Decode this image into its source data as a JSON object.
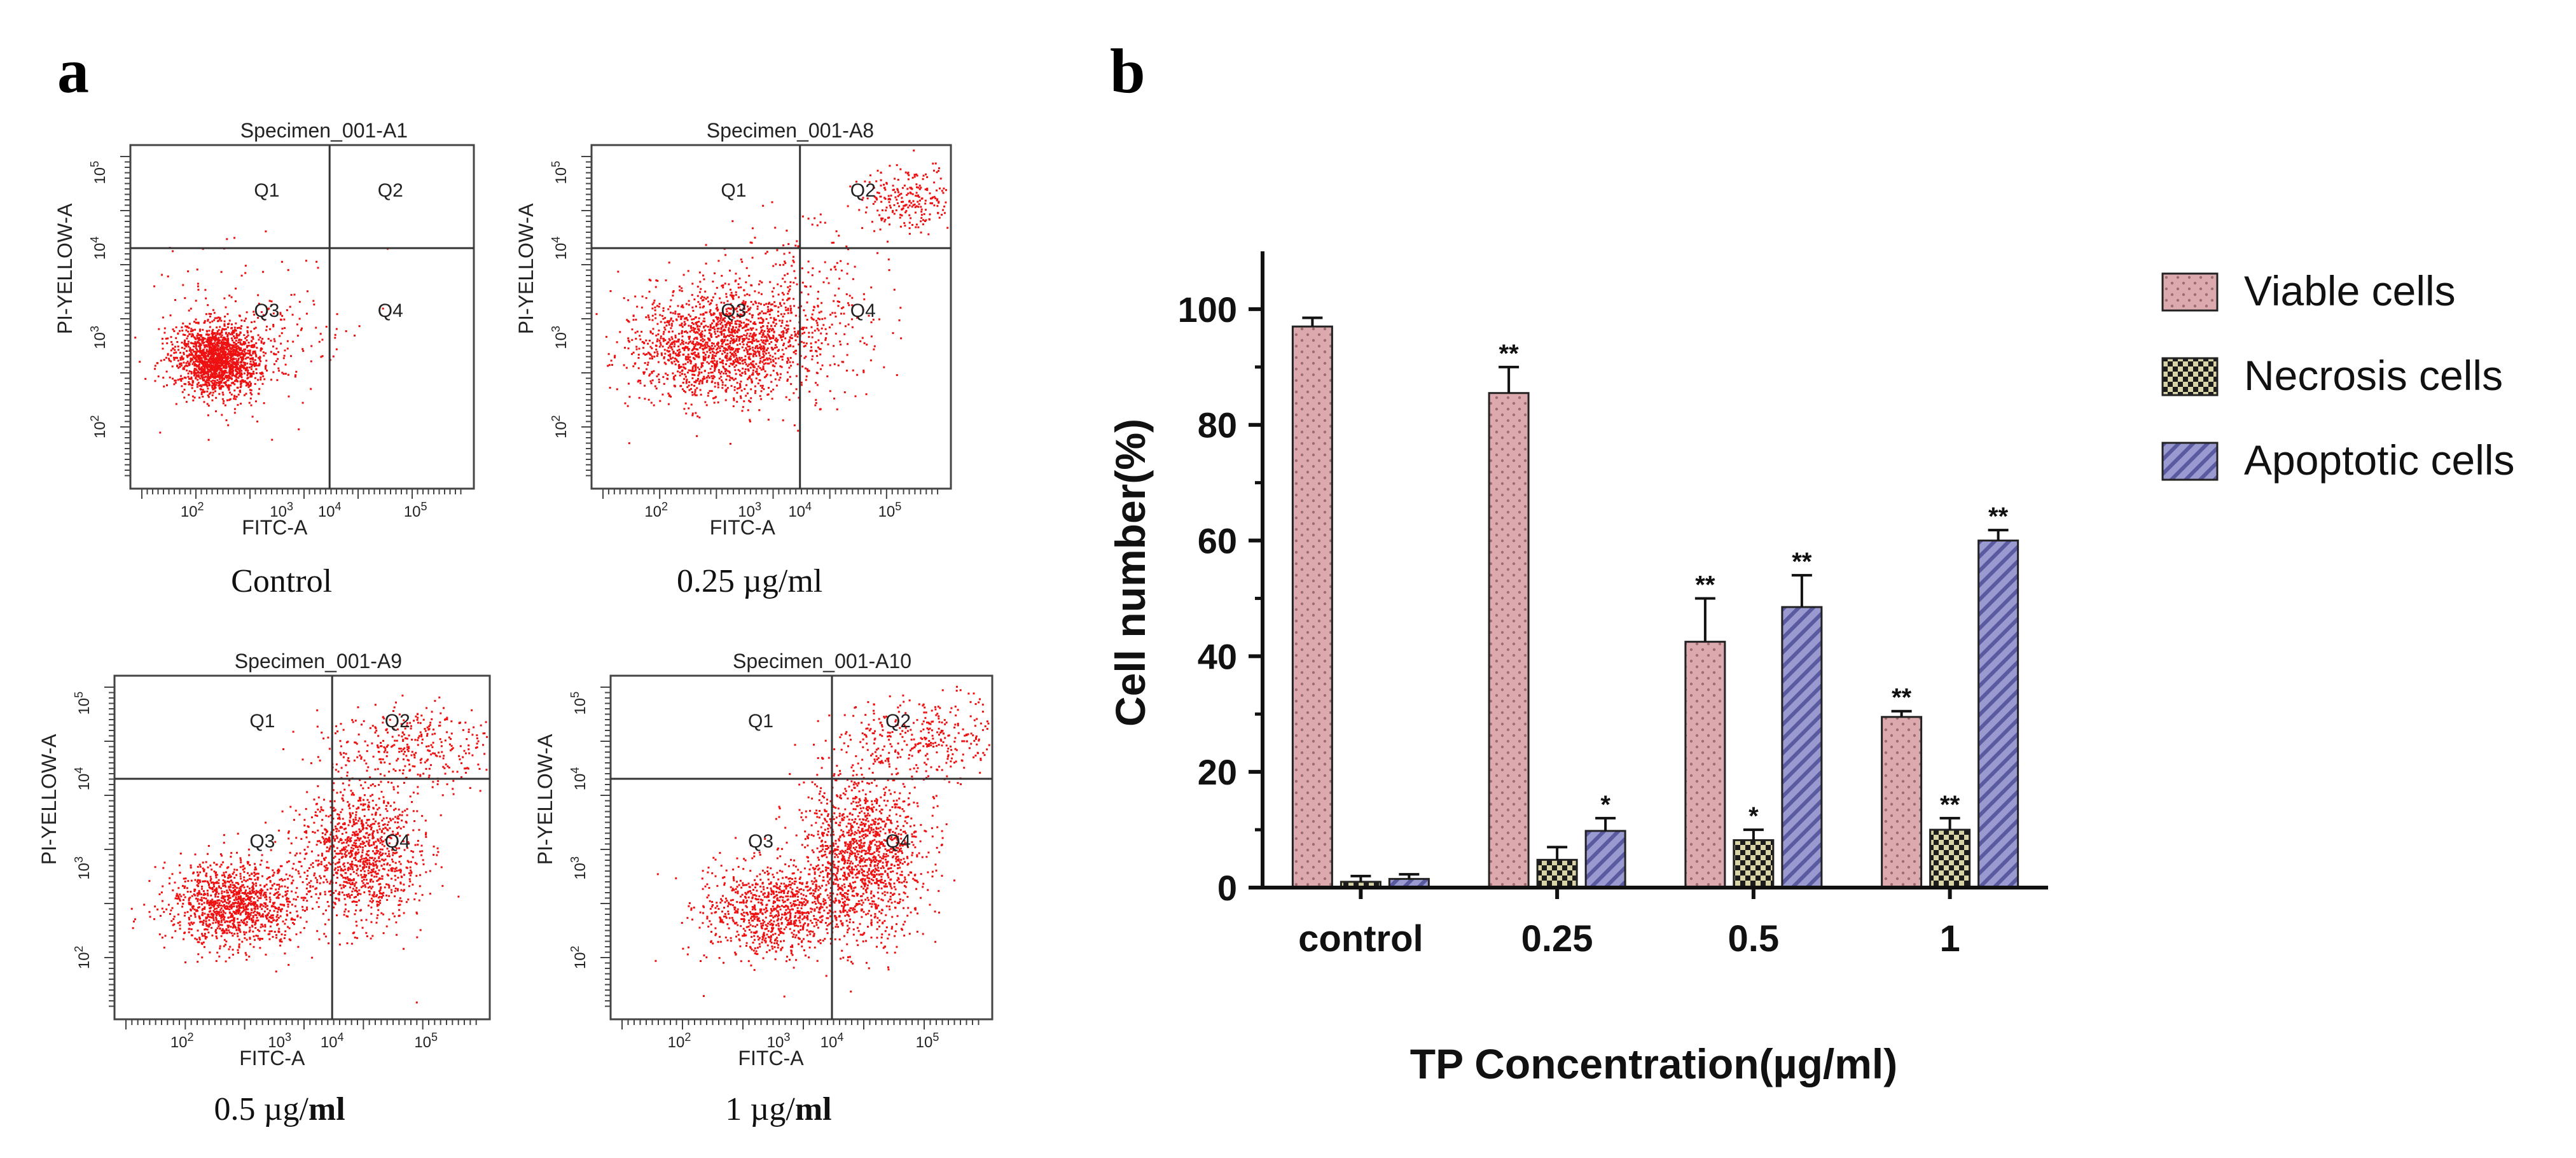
{
  "panel_a_label": "a",
  "panel_b_label": "b",
  "flow_plots": [
    {
      "specimen": "Specimen_001-A1",
      "caption": "Control",
      "caption_unit": "",
      "pattern": "control",
      "xlabel": "FITC-A",
      "ylabel": "PI-YELLOW-A",
      "quadrants": [
        "Q1",
        "Q2",
        "Q3",
        "Q4"
      ],
      "xticks": [
        "10",
        "10",
        "10",
        "10"
      ],
      "xtick_exps": [
        "2",
        "3",
        "4",
        "5"
      ],
      "yticks": [
        "10",
        "10",
        "10",
        "10"
      ],
      "ytick_exps": [
        "5",
        "4",
        "3",
        "2"
      ]
    },
    {
      "specimen": "Specimen_001-A8",
      "caption": "0.25 µg/ml",
      "caption_unit": "",
      "pattern": "low",
      "xlabel": "FITC-A",
      "ylabel": "PI-YELLOW-A",
      "quadrants": [
        "Q1",
        "Q2",
        "Q3",
        "Q4"
      ],
      "xticks": [
        "10",
        "10",
        "10",
        "10"
      ],
      "xtick_exps": [
        "2",
        "3",
        "4",
        "5"
      ],
      "yticks": [
        "10",
        "10",
        "10",
        "10"
      ],
      "ytick_exps": [
        "5",
        "4",
        "3",
        "2"
      ]
    },
    {
      "specimen": "Specimen_001-A9",
      "caption": "0.5 µg/",
      "caption_unit": "ml",
      "pattern": "mid",
      "xlabel": "FITC-A",
      "ylabel": "PI-YELLOW-A",
      "quadrants": [
        "Q1",
        "Q2",
        "Q3",
        "Q4"
      ],
      "xticks": [
        "10",
        "10",
        "10",
        "10"
      ],
      "xtick_exps": [
        "2",
        "3",
        "4",
        "5"
      ],
      "yticks": [
        "10",
        "10",
        "10",
        "10"
      ],
      "ytick_exps": [
        "5",
        "4",
        "3",
        "2"
      ]
    },
    {
      "specimen": "Specimen_001-A10",
      "caption": "1 µg/",
      "caption_unit": "ml",
      "pattern": "high",
      "xlabel": "FITC-A",
      "ylabel": "PI-YELLOW-A",
      "quadrants": [
        "Q1",
        "Q2",
        "Q3",
        "Q4"
      ],
      "xticks": [
        "10",
        "10",
        "10",
        "10"
      ],
      "xtick_exps": [
        "2",
        "3",
        "4",
        "5"
      ],
      "yticks": [
        "10",
        "10",
        "10",
        "10"
      ],
      "ytick_exps": [
        "5",
        "4",
        "3",
        "2"
      ]
    }
  ],
  "chart_data": {
    "type": "bar",
    "title": "",
    "xlabel": "TP Concentration(µg/ml)",
    "ylabel": "Cell number(%)",
    "ylim": [
      0,
      110
    ],
    "yticks": [
      0,
      20,
      40,
      60,
      80,
      100
    ],
    "categories": [
      "control",
      "0.25",
      "0.5",
      "1"
    ],
    "series": [
      {
        "name": "Viable cells",
        "color": "#d9a8ab",
        "pattern": "dots",
        "values": [
          97,
          85.5,
          42.5,
          29.5
        ],
        "errors": [
          1.5,
          4.5,
          7.5,
          1.0
        ],
        "significance": [
          "",
          "**",
          "**",
          "**"
        ]
      },
      {
        "name": "Necrosis cells",
        "color": "#222222",
        "pattern": "checker",
        "values": [
          1,
          4.8,
          8.2,
          10
        ],
        "errors": [
          1.0,
          2.2,
          1.8,
          2.0
        ],
        "significance": [
          "",
          "",
          "*",
          "**"
        ]
      },
      {
        "name": "Apoptotic cells",
        "color": "#8f8fc8",
        "pattern": "hatch",
        "values": [
          1.5,
          9.8,
          48.5,
          60
        ],
        "errors": [
          0.8,
          2.2,
          5.5,
          1.8
        ],
        "significance": [
          "",
          "*",
          "**",
          "**"
        ]
      }
    ],
    "legend_position": "right"
  }
}
